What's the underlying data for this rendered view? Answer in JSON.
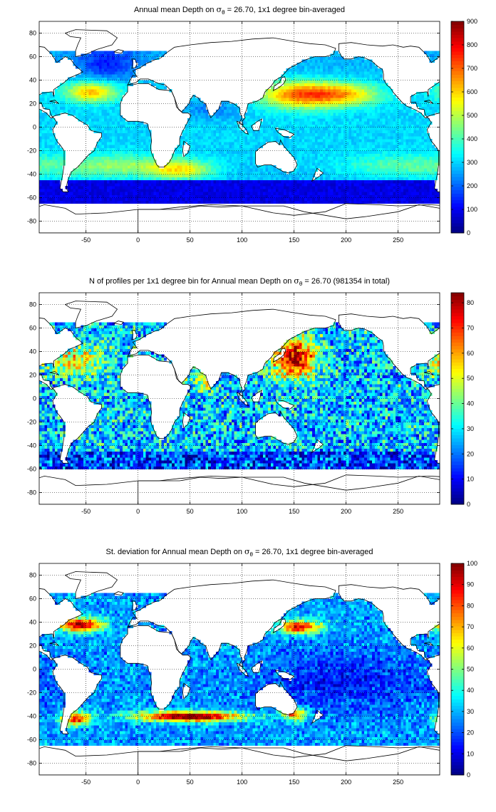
{
  "colors": {
    "colormap": "jet",
    "land": "#ffffff",
    "coastline": "#000000",
    "grid": "#000000",
    "background": "#ffffff"
  },
  "chart_data": [
    {
      "type": "heatmap",
      "title": {
        "prefix": "Annual mean Depth on ",
        "symbol": "σ",
        "subscript": "θ",
        "suffix": " = 26.70, 1x1 degree bin-averaged"
      },
      "xlim": [
        -95,
        290
      ],
      "ylim": [
        -90,
        90
      ],
      "x_ticks": [
        -50,
        0,
        50,
        100,
        150,
        200,
        250
      ],
      "y_ticks": [
        -80,
        -60,
        -40,
        -20,
        0,
        20,
        40,
        60,
        80
      ],
      "grid": true,
      "colorbar": {
        "min": 0,
        "max": 900,
        "ticks": [
          0,
          100,
          200,
          300,
          400,
          500,
          600,
          700,
          800,
          900
        ]
      },
      "field": "depth"
    },
    {
      "type": "heatmap",
      "title": {
        "prefix": "N of profiles per 1x1 degree bin for Annual mean Depth on ",
        "symbol": "σ",
        "subscript": "θ",
        "suffix": " = 26.70 (981354 in total)"
      },
      "xlim": [
        -95,
        290
      ],
      "ylim": [
        -90,
        90
      ],
      "x_ticks": [
        -50,
        0,
        50,
        100,
        150,
        200,
        250
      ],
      "y_ticks": [
        -80,
        -60,
        -40,
        -20,
        0,
        20,
        40,
        60,
        80
      ],
      "grid": true,
      "colorbar": {
        "min": 0,
        "max": 84,
        "ticks": [
          0,
          10,
          20,
          30,
          40,
          50,
          60,
          70,
          80
        ]
      },
      "field": "count"
    },
    {
      "type": "heatmap",
      "title": {
        "prefix": "St. deviation for Annual mean Depth on ",
        "symbol": "σ",
        "subscript": "θ",
        "suffix": " = 26.70, 1x1 degree bin-averaged"
      },
      "xlim": [
        -95,
        290
      ],
      "ylim": [
        -90,
        90
      ],
      "x_ticks": [
        -50,
        0,
        50,
        100,
        150,
        200,
        250
      ],
      "y_ticks": [
        -80,
        -60,
        -40,
        -20,
        0,
        20,
        40,
        60,
        80
      ],
      "grid": true,
      "colorbar": {
        "min": 0,
        "max": 100,
        "ticks": [
          0,
          10,
          20,
          30,
          40,
          50,
          60,
          70,
          80,
          90,
          100
        ]
      },
      "field": "stdev"
    }
  ]
}
